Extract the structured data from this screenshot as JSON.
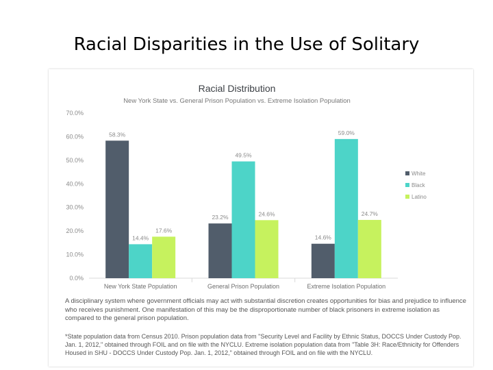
{
  "slide": {
    "title": "Racial Disparities in the Use of Solitary",
    "caption": "A disciplinary system where government officials may act with substantial discretion creates opportunities for bias and prejudice to influence who receives punishment.  One manifestation of this may be the disproportionate number of black prisoners in extreme isolation as compared to the general prison population.",
    "footnote": "*State population data from Census 2010.  Prison population data from \"Security Level and Facility by Ethnic Status, DOCCS Under Custody Pop. Jan. 1, 2012,\" obtained through FOIL and on file with the NYCLU.  Extreme isolation population data from \"Table 3H: Race/Ethnicity for Offenders Housed in SHU - DOCCS Under Custody Pop. Jan. 1, 2012,\" obtained through FOIL and on file with the NYCLU."
  },
  "chart_data": {
    "type": "bar",
    "title": "Racial Distribution",
    "subtitle": "New York State vs. General Prison Population vs. Extreme Isolation Population",
    "categories": [
      "New York State Population",
      "General Prison Population",
      "Extreme Isolation Population"
    ],
    "series": [
      {
        "name": "White",
        "values": [
          58.3,
          23.2,
          14.6
        ],
        "color": "#515d6b"
      },
      {
        "name": "Black",
        "values": [
          14.4,
          49.5,
          59.0
        ],
        "color": "#4dd4c8"
      },
      {
        "name": "Latino",
        "values": [
          17.6,
          24.6,
          24.7
        ],
        "color": "#c6f25e"
      }
    ],
    "ylim": [
      0,
      70
    ],
    "yticks": [
      "0.0%",
      "10.0%",
      "20.0%",
      "30.0%",
      "40.0%",
      "50.0%",
      "60.0%",
      "70.0%"
    ],
    "value_suffix": "%",
    "grid": false,
    "legend": "right"
  }
}
